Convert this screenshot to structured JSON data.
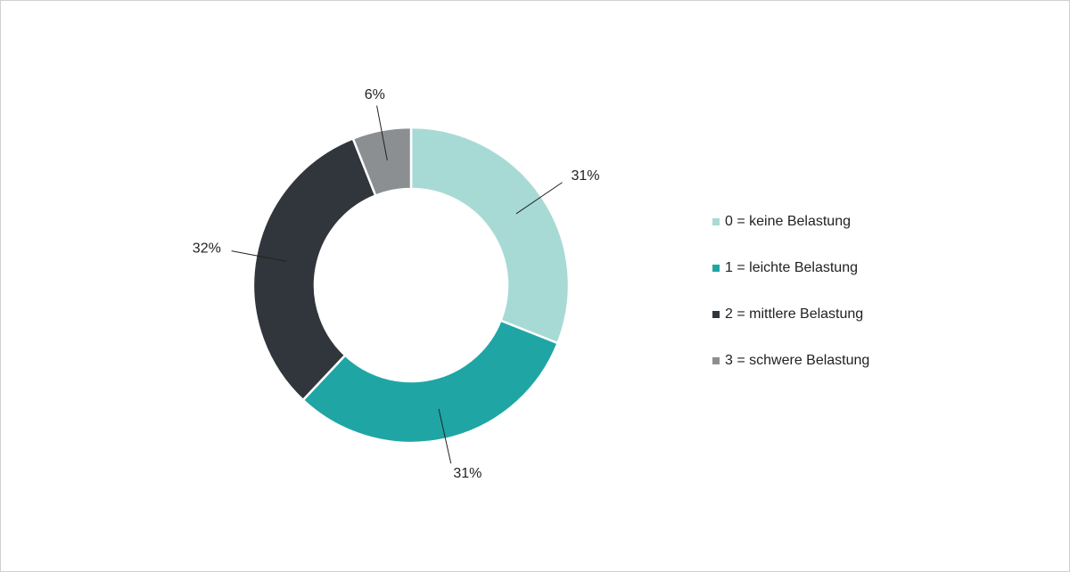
{
  "chart_data": {
    "type": "donut",
    "categories": [
      "0 = keine Belastung",
      "1 = leichte Belastung",
      "2 = mittlere Belastung",
      "3 = schwere Belastung"
    ],
    "values": [
      31,
      31,
      32,
      6
    ],
    "value_labels": [
      "31%",
      "31%",
      "32%",
      "6%"
    ],
    "colors": [
      "#a8dad5",
      "#20a5a5",
      "#30363b",
      "#8c8f92"
    ],
    "legend": "right"
  }
}
